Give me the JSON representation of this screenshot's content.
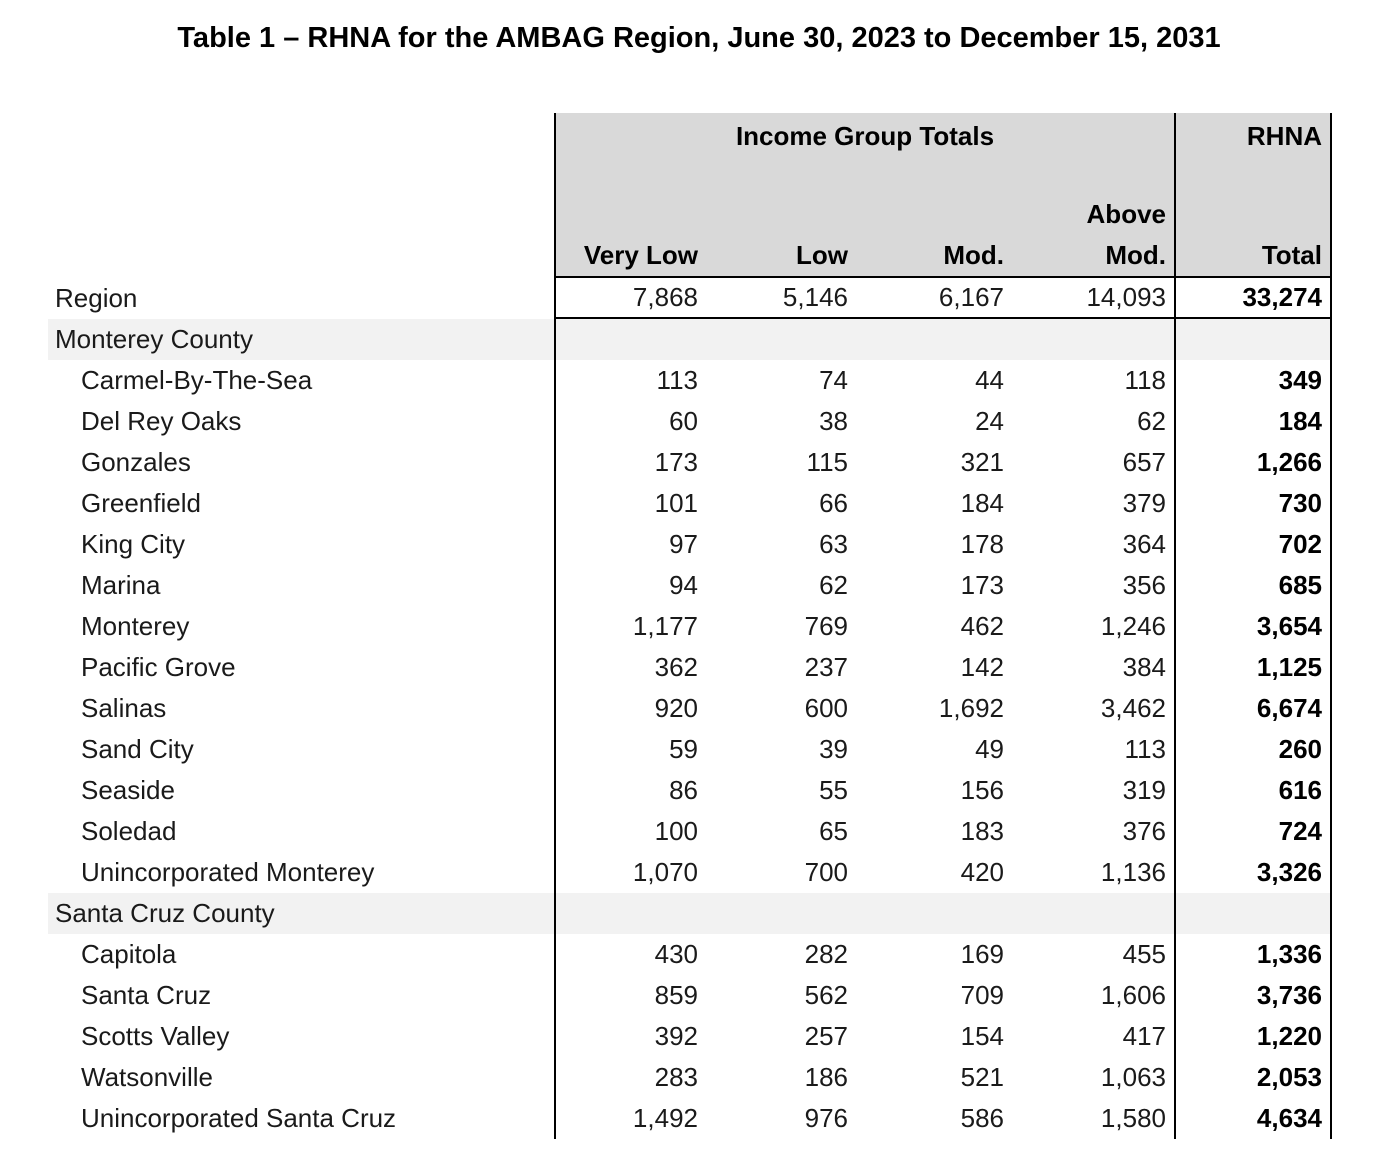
{
  "page_title": "Table 1 – RHNA for the AMBAG Region, June 30, 2023 to December 15, 2031",
  "table": {
    "header": {
      "group_title": "Income Group Totals",
      "rhna": "RHNA",
      "above": "Above",
      "col_very_low": "Very Low",
      "col_low": "Low",
      "col_mod": "Mod.",
      "col_above_mod": "Mod.",
      "col_total": "Total"
    },
    "colors": {
      "header_bg": "#d9d9d9",
      "section_bg": "#f2f2f2",
      "border": "#000000"
    },
    "rows": [
      {
        "type": "region",
        "label": "Region",
        "values": [
          "7,868",
          "5,146",
          "6,167",
          "14,093"
        ],
        "total": "33,274"
      },
      {
        "type": "section",
        "label": "Monterey County",
        "values": [
          "",
          "",
          "",
          ""
        ],
        "total": ""
      },
      {
        "type": "city",
        "label": "Carmel-By-The-Sea",
        "values": [
          "113",
          "74",
          "44",
          "118"
        ],
        "total": "349"
      },
      {
        "type": "city",
        "label": "Del Rey Oaks",
        "values": [
          "60",
          "38",
          "24",
          "62"
        ],
        "total": "184"
      },
      {
        "type": "city",
        "label": "Gonzales",
        "values": [
          "173",
          "115",
          "321",
          "657"
        ],
        "total": "1,266"
      },
      {
        "type": "city",
        "label": "Greenfield",
        "values": [
          "101",
          "66",
          "184",
          "379"
        ],
        "total": "730"
      },
      {
        "type": "city",
        "label": "King City",
        "values": [
          "97",
          "63",
          "178",
          "364"
        ],
        "total": "702"
      },
      {
        "type": "city",
        "label": "Marina",
        "values": [
          "94",
          "62",
          "173",
          "356"
        ],
        "total": "685"
      },
      {
        "type": "city",
        "label": "Monterey",
        "values": [
          "1,177",
          "769",
          "462",
          "1,246"
        ],
        "total": "3,654"
      },
      {
        "type": "city",
        "label": "Pacific Grove",
        "values": [
          "362",
          "237",
          "142",
          "384"
        ],
        "total": "1,125"
      },
      {
        "type": "city",
        "label": "Salinas",
        "values": [
          "920",
          "600",
          "1,692",
          "3,462"
        ],
        "total": "6,674"
      },
      {
        "type": "city",
        "label": "Sand City",
        "values": [
          "59",
          "39",
          "49",
          "113"
        ],
        "total": "260"
      },
      {
        "type": "city",
        "label": "Seaside",
        "values": [
          "86",
          "55",
          "156",
          "319"
        ],
        "total": "616"
      },
      {
        "type": "city",
        "label": "Soledad",
        "values": [
          "100",
          "65",
          "183",
          "376"
        ],
        "total": "724"
      },
      {
        "type": "city",
        "label": "Unincorporated Monterey",
        "values": [
          "1,070",
          "700",
          "420",
          "1,136"
        ],
        "total": "3,326"
      },
      {
        "type": "section",
        "label": "Santa Cruz County",
        "values": [
          "",
          "",
          "",
          ""
        ],
        "total": ""
      },
      {
        "type": "city",
        "label": "Capitola",
        "values": [
          "430",
          "282",
          "169",
          "455"
        ],
        "total": "1,336"
      },
      {
        "type": "city",
        "label": "Santa Cruz",
        "values": [
          "859",
          "562",
          "709",
          "1,606"
        ],
        "total": "3,736"
      },
      {
        "type": "city",
        "label": "Scotts Valley",
        "values": [
          "392",
          "257",
          "154",
          "417"
        ],
        "total": "1,220"
      },
      {
        "type": "city",
        "label": "Watsonville",
        "values": [
          "283",
          "186",
          "521",
          "1,063"
        ],
        "total": "2,053"
      },
      {
        "type": "city",
        "label": "Unincorporated Santa Cruz",
        "values": [
          "1,492",
          "976",
          "586",
          "1,580"
        ],
        "total": "4,634"
      }
    ]
  }
}
